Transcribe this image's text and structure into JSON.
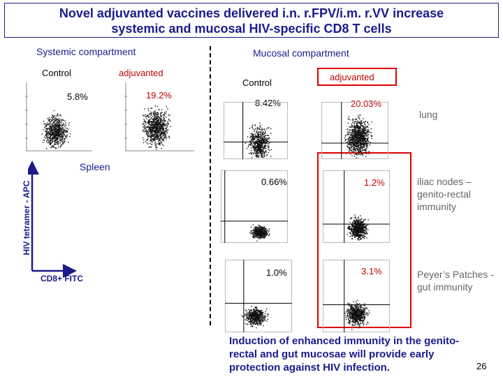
{
  "title": {
    "line1": "Novel adjuvanted vaccines delivered  i.n. r.FPV/i.m. r.VV increase",
    "line2": "systemic and mucosal HIV-specific CD8 T cells"
  },
  "systemic": {
    "header": "Systemic compartment",
    "control_label": "Control",
    "adjuvanted_label": "adjuvanted",
    "control_pct": "5.8%",
    "adjuvanted_pct": "19.2%",
    "tissue_label": "Spleen"
  },
  "axes": {
    "y_label": "HIV tetramer - APC",
    "x_label": "CD8+ FITC"
  },
  "mucosal": {
    "header": "Mucosal compartment",
    "control_label": "Control",
    "adjuvanted_label": "adjuvanted",
    "rows": [
      {
        "control_pct": "8.42%",
        "adjuvanted_pct": "20.03%",
        "tissue": "lung"
      },
      {
        "control_pct": "0.66%",
        "adjuvanted_pct": "1.2%",
        "tissue": "iliac nodes – genito-rectal immunity"
      },
      {
        "control_pct": "1.0%",
        "adjuvanted_pct": "3.1%",
        "tissue": "Peyer’s Patches - gut immunity"
      }
    ]
  },
  "conclusion": "Induction of enhanced immunity in the genito-rectal and gut mucosae will provide early protection against HIV infection.",
  "page_number": "26",
  "colors": {
    "heading": "#1a1a8c",
    "highlight": "#e00000",
    "percent_highlight": "#c00000"
  }
}
